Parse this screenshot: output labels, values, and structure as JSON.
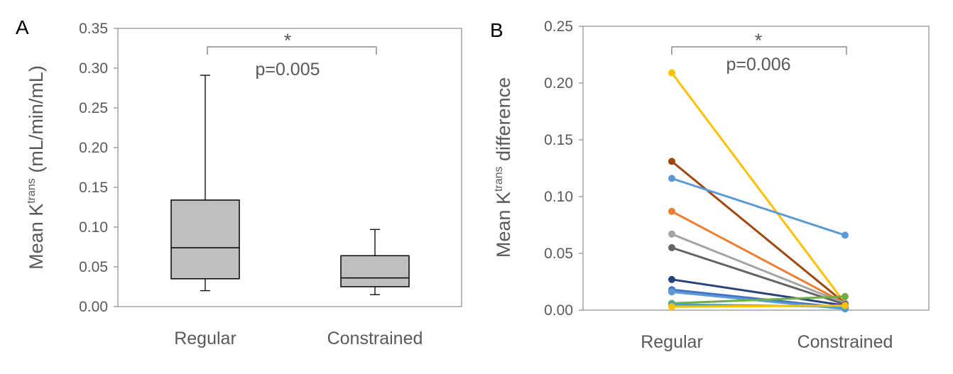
{
  "chart_data": [
    {
      "type": "box",
      "panel_label": "A",
      "ylabel": "Mean K",
      "ylabel_superscript": "trans",
      "ylabel_suffix": " (mL/min/mL)",
      "ylim": [
        0,
        0.35
      ],
      "yticks": [
        "0.00",
        "0.05",
        "0.10",
        "0.15",
        "0.20",
        "0.25",
        "0.30",
        "0.35"
      ],
      "categories": [
        "Regular",
        "Constrained"
      ],
      "boxes": [
        {
          "category": "Regular",
          "min": 0.02,
          "q1": 0.035,
          "median": 0.074,
          "q3": 0.134,
          "max": 0.291
        },
        {
          "category": "Constrained",
          "min": 0.015,
          "q1": 0.025,
          "median": 0.036,
          "q3": 0.064,
          "max": 0.097
        }
      ],
      "annotation": {
        "star": "*",
        "pvalue": "p=0.005"
      },
      "grid": false
    },
    {
      "type": "line",
      "panel_label": "B",
      "ylabel": "Mean K",
      "ylabel_superscript": "trans",
      "ylabel_suffix": " difference",
      "ylim": [
        0,
        0.25
      ],
      "yticks": [
        "0.00",
        "0.05",
        "0.10",
        "0.15",
        "0.20",
        "0.25"
      ],
      "categories": [
        "Regular",
        "Constrained"
      ],
      "series": [
        {
          "color": "#ffc000",
          "values": [
            0.209,
            0.006
          ]
        },
        {
          "color": "#9e480e",
          "values": [
            0.131,
            0.006
          ]
        },
        {
          "color": "#5b9bd5",
          "values": [
            0.116,
            0.066
          ]
        },
        {
          "color": "#ed7d31",
          "values": [
            0.087,
            0.006
          ]
        },
        {
          "color": "#a5a5a5",
          "values": [
            0.067,
            0.006
          ]
        },
        {
          "color": "#636363",
          "values": [
            0.055,
            0.005
          ]
        },
        {
          "color": "#264478",
          "values": [
            0.027,
            0.004
          ]
        },
        {
          "color": "#4472c4",
          "values": [
            0.018,
            0.002
          ]
        },
        {
          "color": "#5b9bd5",
          "values": [
            0.016,
            0.001
          ]
        },
        {
          "color": "#70ad47",
          "values": [
            0.006,
            0.012
          ]
        },
        {
          "color": "#43a3c8",
          "values": [
            0.005,
            0.003
          ]
        },
        {
          "color": "#ffc000",
          "values": [
            0.003,
            0.004
          ]
        }
      ],
      "annotation": {
        "star": "*",
        "pvalue": "p=0.006"
      },
      "grid": false
    }
  ]
}
